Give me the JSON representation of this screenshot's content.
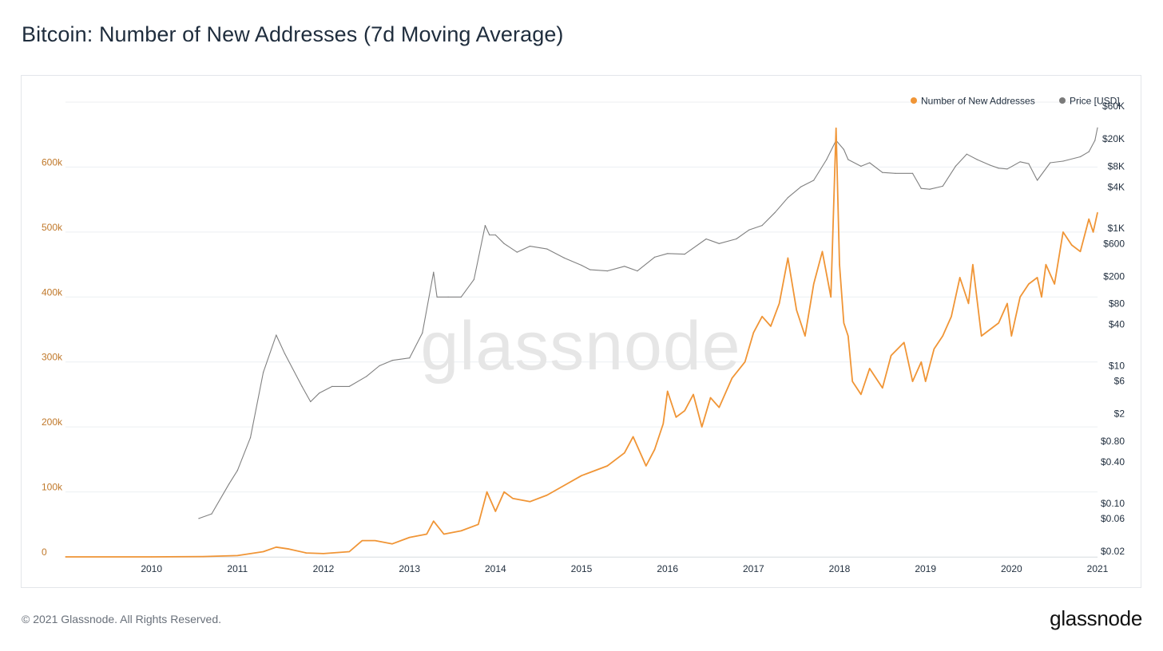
{
  "page": {
    "title": "Bitcoin: Number of New Addresses (7d Moving Average)",
    "copyright": "© 2021 Glassnode. All Rights Reserved.",
    "logo": "glassnode"
  },
  "chart_data": {
    "type": "line",
    "title": "Bitcoin: Number of New Addresses (7d Moving Average)",
    "watermark": "glassnode",
    "xlabel": "",
    "x_ticks": [
      "2010",
      "2011",
      "2012",
      "2013",
      "2014",
      "2015",
      "2016",
      "2017",
      "2018",
      "2019",
      "2020",
      "2021"
    ],
    "x_range": [
      2009.0,
      2021.0
    ],
    "left_axis": {
      "ticks": [
        0,
        100000,
        200000,
        300000,
        400000,
        500000,
        600000
      ],
      "tick_labels": [
        "0",
        "100k",
        "200k",
        "300k",
        "400k",
        "500k",
        "600k"
      ],
      "range": [
        0,
        700000
      ],
      "color": "#c0782a"
    },
    "right_axis": {
      "scale": "log",
      "ticks": [
        0.02,
        0.06,
        0.1,
        0.4,
        0.8,
        2,
        6,
        10,
        40,
        80,
        200,
        600,
        1000,
        4000,
        8000,
        20000,
        60000
      ],
      "tick_labels": [
        "$0.02",
        "$0.06",
        "$0.10",
        "$0.40",
        "$0.80",
        "$2",
        "$6",
        "$10",
        "$40",
        "$80",
        "$200",
        "$600",
        "$1K",
        "$4K",
        "$8K",
        "$20K",
        "$60K"
      ],
      "range": [
        0.02,
        60000
      ]
    },
    "legend": {
      "position": "top-right"
    },
    "grid": true,
    "series": [
      {
        "name": "Number of New Addresses",
        "axis": "left",
        "color": "#f09536",
        "x": [
          2009.0,
          2010.0,
          2010.6,
          2011.0,
          2011.3,
          2011.45,
          2011.6,
          2011.8,
          2012.0,
          2012.3,
          2012.45,
          2012.6,
          2012.8,
          2013.0,
          2013.2,
          2013.28,
          2013.4,
          2013.6,
          2013.8,
          2013.9,
          2014.0,
          2014.1,
          2014.2,
          2014.4,
          2014.6,
          2014.8,
          2015.0,
          2015.1,
          2015.3,
          2015.5,
          2015.6,
          2015.75,
          2015.85,
          2015.95,
          2016.0,
          2016.1,
          2016.2,
          2016.3,
          2016.4,
          2016.5,
          2016.6,
          2016.75,
          2016.9,
          2017.0,
          2017.1,
          2017.2,
          2017.3,
          2017.4,
          2017.5,
          2017.6,
          2017.7,
          2017.8,
          2017.9,
          2017.96,
          2018.0,
          2018.05,
          2018.1,
          2018.15,
          2018.25,
          2018.35,
          2018.5,
          2018.6,
          2018.75,
          2018.85,
          2018.95,
          2019.0,
          2019.1,
          2019.2,
          2019.3,
          2019.4,
          2019.5,
          2019.55,
          2019.65,
          2019.75,
          2019.85,
          2019.95,
          2020.0,
          2020.1,
          2020.2,
          2020.3,
          2020.35,
          2020.4,
          2020.5,
          2020.6,
          2020.7,
          2020.8,
          2020.9,
          2020.95,
          2021.0
        ],
        "values": [
          0,
          0,
          500,
          2000,
          8000,
          15000,
          12000,
          6000,
          5000,
          8000,
          25000,
          25000,
          20000,
          30000,
          35000,
          55000,
          35000,
          40000,
          50000,
          100000,
          70000,
          100000,
          90000,
          85000,
          95000,
          110000,
          125000,
          130000,
          140000,
          160000,
          185000,
          140000,
          165000,
          205000,
          255000,
          215000,
          225000,
          250000,
          200000,
          245000,
          230000,
          275000,
          300000,
          345000,
          370000,
          355000,
          390000,
          460000,
          380000,
          340000,
          420000,
          470000,
          400000,
          660000,
          450000,
          360000,
          340000,
          270000,
          250000,
          290000,
          260000,
          310000,
          330000,
          270000,
          300000,
          270000,
          320000,
          340000,
          370000,
          430000,
          390000,
          450000,
          340000,
          350000,
          360000,
          390000,
          340000,
          400000,
          420000,
          430000,
          400000,
          450000,
          420000,
          500000,
          480000,
          470000,
          520000,
          500000,
          530000
        ]
      },
      {
        "name": "Price [USD]",
        "axis": "right",
        "color": "#808080",
        "x": [
          2010.55,
          2010.7,
          2010.9,
          2011.0,
          2011.15,
          2011.3,
          2011.45,
          2011.55,
          2011.75,
          2011.85,
          2011.95,
          2012.1,
          2012.3,
          2012.5,
          2012.65,
          2012.8,
          2013.0,
          2013.15,
          2013.28,
          2013.32,
          2013.45,
          2013.6,
          2013.75,
          2013.88,
          2013.93,
          2014.0,
          2014.1,
          2014.25,
          2014.4,
          2014.6,
          2014.8,
          2015.0,
          2015.1,
          2015.3,
          2015.5,
          2015.65,
          2015.85,
          2016.0,
          2016.2,
          2016.45,
          2016.6,
          2016.8,
          2016.95,
          2017.1,
          2017.25,
          2017.4,
          2017.55,
          2017.7,
          2017.85,
          2017.96,
          2018.05,
          2018.1,
          2018.25,
          2018.35,
          2018.5,
          2018.65,
          2018.85,
          2018.95,
          2019.05,
          2019.2,
          2019.35,
          2019.48,
          2019.6,
          2019.75,
          2019.85,
          2019.95,
          2020.1,
          2020.2,
          2020.3,
          2020.45,
          2020.6,
          2020.8,
          2020.9,
          2020.97,
          2021.0
        ],
        "values": [
          0.06,
          0.07,
          0.19,
          0.3,
          0.9,
          8,
          28,
          15,
          5,
          3,
          4,
          5,
          5,
          7,
          10,
          12,
          13,
          30,
          230,
          100,
          100,
          100,
          180,
          1100,
          800,
          800,
          600,
          450,
          550,
          500,
          370,
          290,
          250,
          240,
          280,
          240,
          380,
          430,
          420,
          700,
          600,
          700,
          950,
          1100,
          1700,
          2800,
          4000,
          5000,
          10000,
          19000,
          14000,
          10000,
          8000,
          9000,
          6500,
          6300,
          6300,
          3800,
          3700,
          4100,
          8000,
          12000,
          10000,
          8300,
          7500,
          7300,
          9300,
          8700,
          5000,
          9000,
          9500,
          11000,
          13000,
          19000,
          29000
        ]
      }
    ]
  }
}
